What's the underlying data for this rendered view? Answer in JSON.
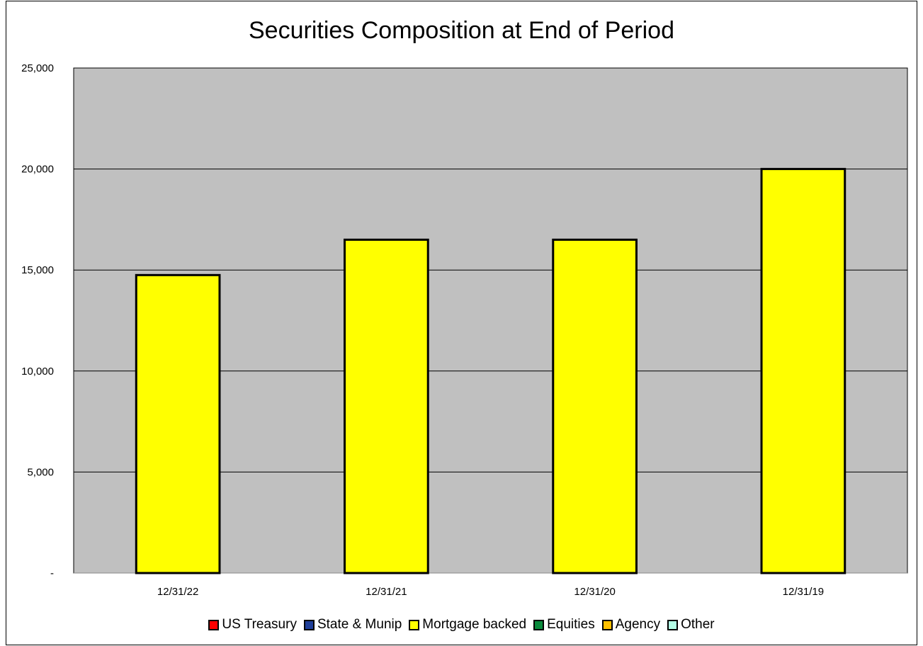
{
  "chart_data": {
    "type": "bar",
    "title": "Securities Composition at End of Period",
    "xlabel": "",
    "ylabel": "",
    "categories": [
      "12/31/22",
      "12/31/21",
      "12/31/20",
      "12/31/19"
    ],
    "series": [
      {
        "name": "US Treasury",
        "color": "#ff0000",
        "values": [
          0,
          0,
          0,
          0
        ]
      },
      {
        "name": "State & Munip",
        "color": "#1f3f99",
        "values": [
          0,
          0,
          0,
          0
        ]
      },
      {
        "name": "Mortgage backed",
        "color": "#ffff00",
        "values": [
          14750,
          16500,
          16500,
          20000
        ]
      },
      {
        "name": "Equities",
        "color": "#0a8a3c",
        "values": [
          0,
          0,
          0,
          0
        ]
      },
      {
        "name": "Agency",
        "color": "#ffc000",
        "values": [
          0,
          0,
          0,
          0
        ]
      },
      {
        "name": "Other",
        "color": "#b3ffe6",
        "values": [
          0,
          0,
          0,
          0
        ]
      }
    ],
    "ylim": [
      0,
      25000
    ],
    "yticks": [
      0,
      5000,
      10000,
      15000,
      20000,
      25000
    ],
    "ytick_labels": [
      "-",
      "5,000",
      "10,000",
      "15,000",
      "20,000",
      "25,000"
    ],
    "grid": true,
    "legend_position": "bottom",
    "plot_background": "#c0c0c0",
    "stacked": true
  }
}
